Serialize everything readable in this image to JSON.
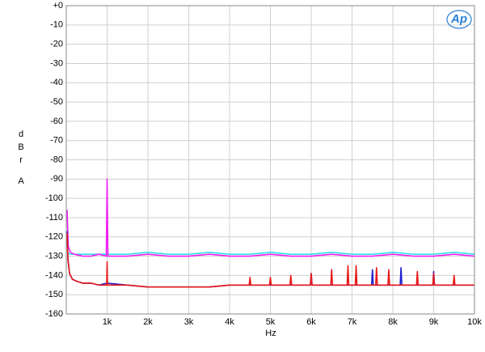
{
  "chart_data": {
    "type": "line",
    "y_label": "dBr",
    "y_label_unit": "A",
    "x_label": "Hz",
    "logo": "Ap",
    "xlim": [
      0,
      10000
    ],
    "ylim": [
      -160,
      0
    ],
    "grid": true,
    "xticks": [
      {
        "value": 1000,
        "label": "1k"
      },
      {
        "value": 2000,
        "label": "2k"
      },
      {
        "value": 3000,
        "label": "3k"
      },
      {
        "value": 4000,
        "label": "4k"
      },
      {
        "value": 5000,
        "label": "5k"
      },
      {
        "value": 6000,
        "label": "6k"
      },
      {
        "value": 7000,
        "label": "7k"
      },
      {
        "value": 8000,
        "label": "8k"
      },
      {
        "value": 9000,
        "label": "9k"
      },
      {
        "value": 10000,
        "label": "10k"
      }
    ],
    "yticks": [
      {
        "value": 0,
        "label": "+0"
      },
      -10,
      -20,
      -30,
      -40,
      -50,
      -60,
      -70,
      -80,
      -90,
      -100,
      -110,
      -120,
      -130,
      -140,
      -150,
      -160
    ],
    "series": [
      {
        "color": "#33e0e8",
        "x": [
          20,
          100,
          500,
          1000,
          1500,
          2000,
          2500,
          3000,
          3500,
          4000,
          4500,
          5000,
          5500,
          6000,
          6500,
          7000,
          7500,
          8000,
          8500,
          9000,
          9500,
          10000
        ],
        "values": [
          -128,
          -129,
          -129,
          -129,
          -129,
          -128,
          -129,
          -129,
          -128,
          -129,
          -129,
          -128,
          -129,
          -129,
          -128,
          -129,
          -129,
          -128,
          -129,
          -129,
          -128,
          -129
        ]
      },
      {
        "color": "#f020f0",
        "x": [
          20,
          50,
          100,
          200,
          400,
          600,
          800,
          980,
          1000,
          1020,
          1500,
          2000,
          2500,
          3000,
          3500,
          4000,
          4500,
          5000,
          5500,
          6000,
          6500,
          7000,
          7500,
          8000,
          8500,
          9000,
          9500,
          10000
        ],
        "values": [
          -106,
          -125,
          -128,
          -129,
          -130,
          -130,
          -129,
          -130,
          -90,
          -130,
          -130,
          -129,
          -130,
          -130,
          -129,
          -130,
          -130,
          -129,
          -130,
          -130,
          -129,
          -130,
          -130,
          -129,
          -130,
          -130,
          -129,
          -130
        ]
      },
      {
        "color": "#2020d0",
        "x": [
          20,
          40,
          80,
          150,
          250,
          400,
          600,
          800,
          1000,
          1500,
          2000,
          2500,
          3000,
          3500,
          4000,
          4500,
          5000,
          5500,
          5980,
          6000,
          6020,
          7480,
          7500,
          7520,
          8180,
          8200,
          8220,
          8980,
          9000,
          9020,
          10000
        ],
        "values": [
          -117,
          -131,
          -139,
          -142,
          -143,
          -144,
          -144,
          -145,
          -144,
          -145,
          -146,
          -146,
          -146,
          -146,
          -145,
          -145,
          -145,
          -145,
          -145,
          -139,
          -145,
          -145,
          -137,
          -145,
          -145,
          -136,
          -145,
          -145,
          -138,
          -145,
          -145
        ]
      },
      {
        "color": "#e81818",
        "x": [
          20,
          40,
          80,
          150,
          250,
          400,
          600,
          800,
          990,
          1000,
          1010,
          1500,
          2000,
          2500,
          3000,
          3500,
          4000,
          4480,
          4500,
          4520,
          4980,
          5000,
          5020,
          5480,
          5500,
          5520,
          5980,
          6000,
          6020,
          6480,
          6500,
          6520,
          6880,
          6900,
          6920,
          7080,
          7100,
          7120,
          7580,
          7600,
          7620,
          7880,
          7900,
          7920,
          8580,
          8600,
          8620,
          8980,
          9000,
          9020,
          9480,
          9500,
          9520,
          10000
        ],
        "values": [
          -118,
          -132,
          -139,
          -142,
          -143,
          -144,
          -144,
          -145,
          -145,
          -133,
          -145,
          -145,
          -146,
          -146,
          -146,
          -146,
          -145,
          -145,
          -141,
          -145,
          -145,
          -141,
          -145,
          -145,
          -140,
          -145,
          -145,
          -139,
          -145,
          -145,
          -137,
          -145,
          -145,
          -135,
          -145,
          -145,
          -135,
          -145,
          -145,
          -136,
          -145,
          -145,
          -137,
          -145,
          -145,
          -138,
          -145,
          -145,
          -139,
          -145,
          -145,
          -140,
          -145,
          -145
        ]
      }
    ]
  }
}
